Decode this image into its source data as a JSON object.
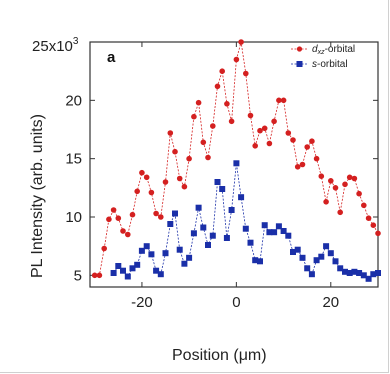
{
  "chart_data": {
    "type": "line",
    "panel_label": "a",
    "xlabel": "Position (μm)",
    "ylabel": "PL Intensity (arb. units)",
    "y_multiplier_label": "x10",
    "y_multiplier_exponent": "3",
    "xlim": [
      -31,
      30
    ],
    "ylim": [
      4,
      25
    ],
    "x_ticks": [
      -20,
      0,
      20
    ],
    "y_ticks": [
      5,
      10,
      15,
      20,
      25
    ],
    "y_tick_labels": [
      "5",
      "10",
      "15",
      "20",
      "25"
    ],
    "x_tick_labels": [
      "-20",
      "0",
      "20"
    ],
    "legend_position": "top-right",
    "series": [
      {
        "name": "d",
        "name_sub": "xz",
        "name_suffix": "-orbital",
        "color": "#d42020",
        "marker": "circle",
        "x": [
          -30,
          -29,
          -28,
          -27,
          -26,
          -25,
          -24,
          -23,
          -22,
          -21,
          -20,
          -19,
          -18,
          -17,
          -16,
          -15,
          -14,
          -13,
          -12,
          -11,
          -10,
          -9,
          -8,
          -7,
          -6,
          -5,
          -4,
          -3,
          -2,
          -1,
          0,
          1,
          2,
          3,
          4,
          5,
          6,
          7,
          8,
          9,
          10,
          11,
          12,
          13,
          14,
          15,
          16,
          17,
          18,
          19,
          20,
          21,
          22,
          23,
          24,
          25,
          26,
          27,
          28,
          29,
          30
        ],
        "values": [
          5.0,
          5.0,
          7.3,
          9.8,
          10.6,
          9.9,
          8.8,
          8.5,
          10.2,
          12.2,
          13.8,
          13.4,
          12.1,
          10.3,
          10.0,
          13.0,
          17.2,
          15.6,
          13.3,
          12.6,
          15.0,
          18.6,
          19.8,
          16.4,
          15.1,
          17.8,
          21.2,
          22.5,
          19.7,
          18.2,
          23.5,
          25.0,
          22.3,
          18.7,
          16.1,
          17.4,
          17.6,
          16.3,
          18.2,
          20.0,
          20.0,
          17.2,
          16.6,
          14.3,
          14.5,
          16.0,
          16.5,
          15.0,
          13.5,
          11.3,
          13.1,
          12.5,
          10.4,
          12.8,
          13.4,
          13.3,
          12.0,
          11.0,
          9.9,
          9.3,
          8.6
        ]
      },
      {
        "name": "s",
        "name_suffix": "-orbital",
        "color": "#1a2fa8",
        "marker": "square",
        "x": [
          -26,
          -25,
          -24,
          -23,
          -22,
          -21,
          -20,
          -19,
          -18,
          -17,
          -16,
          -15,
          -14,
          -13,
          -12,
          -11,
          -10,
          -9,
          -8,
          -7,
          -6,
          -5,
          -4,
          -3,
          -2,
          -1,
          0,
          1,
          2,
          3,
          4,
          5,
          6,
          7,
          8,
          9,
          10,
          11,
          12,
          13,
          14,
          15,
          16,
          17,
          18,
          19,
          20,
          21,
          22,
          23,
          24,
          25,
          26,
          27,
          28,
          29,
          30
        ],
        "values": [
          5.2,
          5.8,
          5.4,
          4.9,
          5.6,
          5.9,
          7.1,
          7.5,
          6.8,
          5.4,
          5.1,
          6.9,
          9.4,
          10.3,
          7.2,
          6.0,
          6.5,
          8.6,
          10.8,
          9.1,
          7.6,
          8.4,
          13.0,
          12.4,
          8.2,
          10.6,
          14.6,
          11.7,
          9.0,
          7.8,
          6.3,
          6.2,
          9.3,
          8.7,
          8.7,
          9.2,
          8.8,
          8.4,
          7.0,
          7.2,
          6.5,
          5.6,
          5.1,
          6.3,
          6.6,
          7.5,
          6.9,
          6.2,
          5.6,
          5.3,
          5.2,
          5.3,
          5.2,
          5.0,
          4.7,
          5.1,
          5.2
        ]
      }
    ]
  }
}
